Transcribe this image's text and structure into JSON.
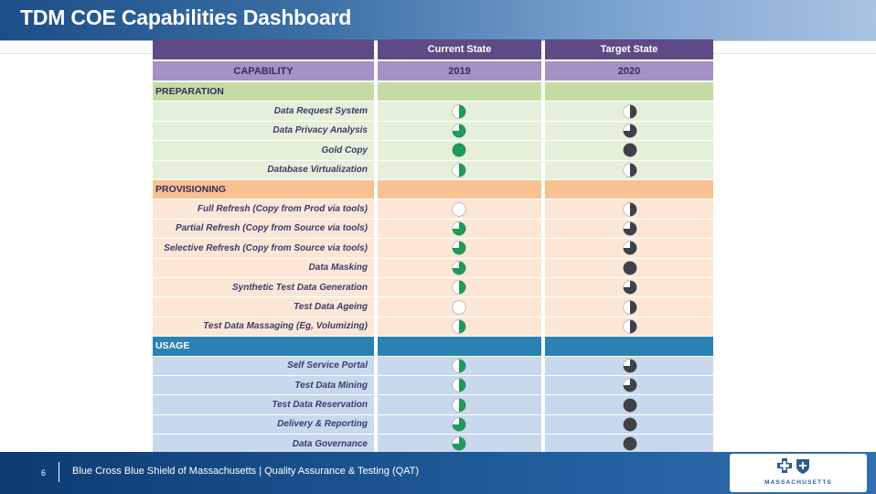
{
  "title": "TDM COE Capabilities Dashboard",
  "table": {
    "header": {
      "capability": "CAPABILITY",
      "current_state": "Current State",
      "target_state": "Target State",
      "current_year": "2019",
      "target_year": "2020"
    },
    "sections": [
      {
        "name": "PREPARATION",
        "rows": [
          {
            "label": "Data Request System",
            "current": 0.5,
            "target": 0.5
          },
          {
            "label": "Data Privacy Analysis",
            "current": 0.75,
            "target": 0.75
          },
          {
            "label": "Gold Copy",
            "current": 1.0,
            "target": 1.0
          },
          {
            "label": "Database Virtualization",
            "current": 0.5,
            "target": 0.5
          }
        ]
      },
      {
        "name": "PROVISIONING",
        "rows": [
          {
            "label": "Full Refresh (Copy from Prod via tools)",
            "current": 0.0,
            "target": 0.5
          },
          {
            "label": "Partial Refresh (Copy from Source via tools)",
            "current": 0.75,
            "target": 0.75
          },
          {
            "label": "Selective Refresh (Copy from Source via tools)",
            "current": 0.75,
            "target": 0.75
          },
          {
            "label": "Data Masking",
            "current": 0.75,
            "target": 1.0
          },
          {
            "label": "Synthetic Test Data Generation",
            "current": 0.5,
            "target": 0.75
          },
          {
            "label": "Test Data Ageing",
            "current": 0.0,
            "target": 0.5
          },
          {
            "label": "Test Data Massaging (Eg, Volumizing)",
            "current": 0.5,
            "target": 0.5
          }
        ]
      },
      {
        "name": "USAGE",
        "rows": [
          {
            "label": "Self Service Portal",
            "current": 0.5,
            "target": 0.75
          },
          {
            "label": "Test Data Mining",
            "current": 0.5,
            "target": 0.75
          },
          {
            "label": "Test Data Reservation",
            "current": 0.5,
            "target": 1.0
          },
          {
            "label": "Delivery & Reporting",
            "current": 0.75,
            "target": 1.0
          },
          {
            "label": "Data Governance",
            "current": 0.75,
            "target": 1.0
          }
        ]
      }
    ]
  },
  "colors": {
    "current_fill": "#1f9a57",
    "target_fill": "#3d4148"
  },
  "footer": {
    "page_number": "6",
    "text": "Blue Cross Blue Shield of Massachusetts | Quality Assurance & Testing (QAT)",
    "logo_text": "MASSACHUSETTS",
    "logo_icons": [
      "cross-icon",
      "shield-icon"
    ]
  }
}
